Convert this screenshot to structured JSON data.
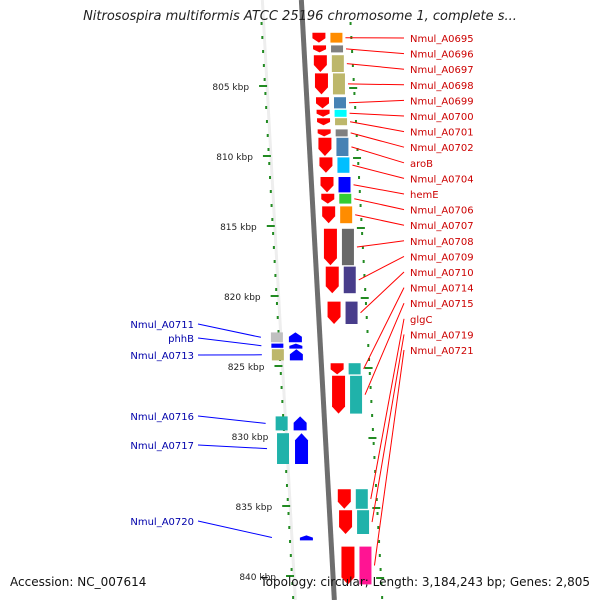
{
  "title": "Nitrosospira multiformis ATCC 25196 chromosome 1, complete s...",
  "footer": {
    "accession": "Accession: NC_007614",
    "topology": "Topology: circular; Length: 3,184,243 bp; Genes: 2,805"
  },
  "scale": {
    "unit": "kbp",
    "ticks": [
      {
        "kbp": 805,
        "label": "805 kbp"
      },
      {
        "kbp": 810,
        "label": "810 kbp"
      },
      {
        "kbp": 815,
        "label": "815 kbp"
      },
      {
        "kbp": 820,
        "label": "820 kbp"
      },
      {
        "kbp": 825,
        "label": "825 kbp"
      },
      {
        "kbp": 830,
        "label": "830 kbp"
      },
      {
        "kbp": 835,
        "label": "835 kbp"
      },
      {
        "kbp": 840,
        "label": "840 kbp"
      }
    ]
  },
  "colors": {
    "backbone": "#808080",
    "forward": "#ff0000",
    "reverse": "#0000ff",
    "forward_label": "#cc0000",
    "reverse_label": "#0000aa",
    "tick": "#228b22",
    "leader": "#ff0000",
    "leader_reverse": "#0000ff"
  },
  "genes_forward": [
    {
      "label": "Nmul_A0695",
      "kbp_start": 801.2,
      "kbp_end": 801.9,
      "cog": "#ff8c00"
    },
    {
      "label": "Nmul_A0696",
      "kbp_start": 802.1,
      "kbp_end": 802.6,
      "cog": "#808080"
    },
    {
      "label": "Nmul_A0697",
      "kbp_start": 802.8,
      "kbp_end": 804.0,
      "cog": "#bdb76b"
    },
    {
      "label": "Nmul_A0698",
      "kbp_start": 804.1,
      "kbp_end": 805.6,
      "cog": "#bdb76b"
    },
    {
      "label": "Nmul_A0699",
      "kbp_start": 805.8,
      "kbp_end": 806.6,
      "cog": "#4682b4"
    },
    {
      "label": "Nmul_A0700",
      "kbp_start": 806.7,
      "kbp_end": 807.2,
      "cog": "#00ffff"
    },
    {
      "label": "Nmul_A0701",
      "kbp_start": 807.3,
      "kbp_end": 807.8,
      "cog": "#bdb76b"
    },
    {
      "label": "Nmul_A0702",
      "kbp_start": 808.1,
      "kbp_end": 808.6,
      "cog": "#808080"
    },
    {
      "label": "aroB",
      "kbp_start": 808.7,
      "kbp_end": 810.0,
      "cog": "#4682b4"
    },
    {
      "label": "Nmul_A0704",
      "kbp_start": 810.1,
      "kbp_end": 811.2,
      "cog": "#00bfff"
    },
    {
      "label": "hemE",
      "kbp_start": 811.5,
      "kbp_end": 812.6,
      "cog": "#0000ff"
    },
    {
      "label": "Nmul_A0706",
      "kbp_start": 812.7,
      "kbp_end": 813.4,
      "cog": "#32cd32"
    },
    {
      "label": "Nmul_A0707",
      "kbp_start": 813.6,
      "kbp_end": 814.8,
      "cog": "#ff8c00"
    },
    {
      "label": "Nmul_A0708",
      "kbp_start": 815.2,
      "kbp_end": 817.8,
      "cog": "#696969"
    },
    {
      "label": "Nmul_A0709",
      "kbp_start": 817.9,
      "kbp_end": 819.8,
      "cog": "#483d8b"
    },
    {
      "label": "Nmul_A0710",
      "kbp_start": 820.4,
      "kbp_end": 822.0,
      "cog": "#483d8b"
    },
    {
      "label": "Nmul_A0714",
      "kbp_start": 824.8,
      "kbp_end": 825.6,
      "cog": "#20b2aa"
    },
    {
      "label": "Nmul_A0715",
      "kbp_start": 825.7,
      "kbp_end": 828.4,
      "cog": "#20b2aa"
    },
    {
      "label": "glgC",
      "kbp_start": 833.8,
      "kbp_end": 835.2,
      "cog": "#20b2aa"
    },
    {
      "label": "Nmul_A0719",
      "kbp_start": 835.3,
      "kbp_end": 837.0,
      "cog": "#20b2aa"
    },
    {
      "label": "Nmul_A0721",
      "kbp_start": 837.9,
      "kbp_end": 840.6,
      "cog": "#ff1493"
    }
  ],
  "genes_reverse": [
    {
      "label": "Nmul_A0711",
      "kbp_start": 822.6,
      "kbp_end": 823.3,
      "cog": "#c0c0c0"
    },
    {
      "label": "phhB",
      "kbp_start": 823.4,
      "kbp_end": 823.7,
      "cog": "#0000ff"
    },
    {
      "label": "Nmul_A0713",
      "kbp_start": 823.8,
      "kbp_end": 824.6,
      "cog": "#bdb76b"
    },
    {
      "label": "Nmul_A0716",
      "kbp_start": 828.6,
      "kbp_end": 829.6,
      "cog": "#20b2aa"
    },
    {
      "label": "Nmul_A0717",
      "kbp_start": 829.8,
      "kbp_end": 832.0,
      "cog": "#20b2aa"
    },
    {
      "label": "Nmul_A0720",
      "kbp_start": 837.1,
      "kbp_end": 837.4,
      "cog": ""
    }
  ]
}
